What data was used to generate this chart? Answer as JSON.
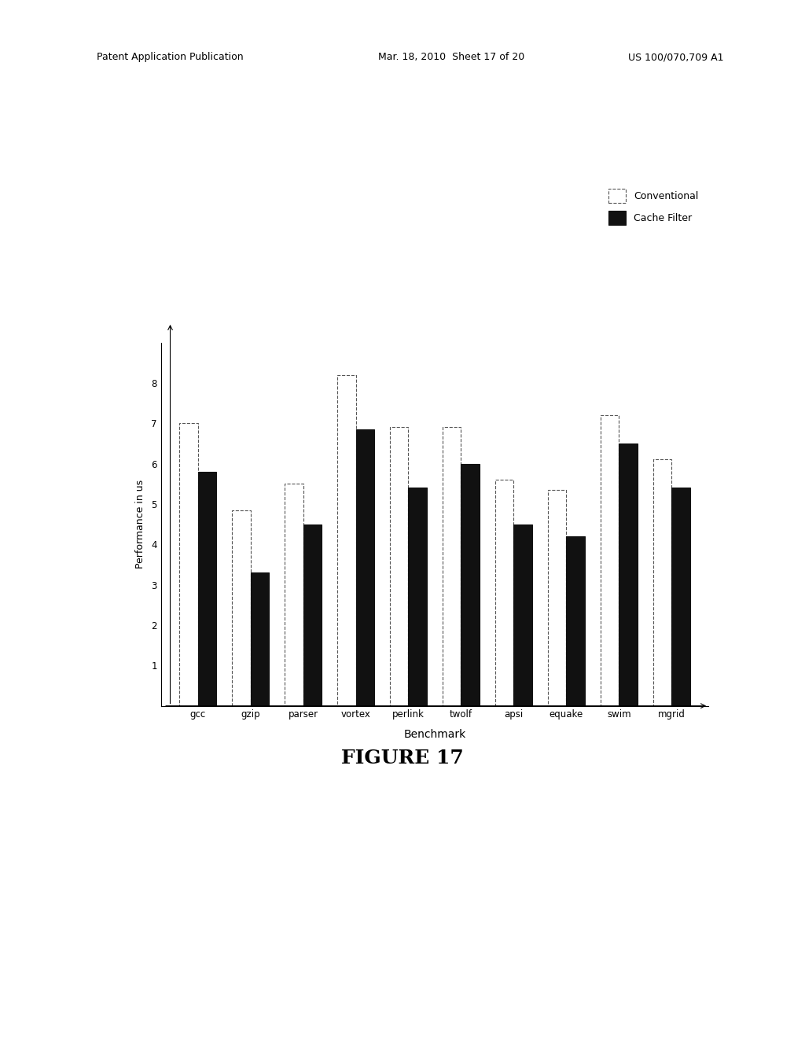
{
  "categories": [
    "gcc",
    "gzip",
    "parser",
    "vortex",
    "perlink",
    "twolf",
    "apsi",
    "equake",
    "swim",
    "mgrid"
  ],
  "conventional": [
    7.0,
    4.85,
    5.5,
    8.2,
    6.9,
    6.9,
    5.6,
    5.35,
    7.2,
    6.1
  ],
  "cache_filter": [
    5.8,
    3.3,
    4.5,
    6.85,
    5.4,
    6.0,
    4.5,
    4.2,
    6.5,
    5.4
  ],
  "ylabel": "Performance in us",
  "xlabel": "Benchmark",
  "title": "FIGURE 17",
  "legend_conventional": "Conventional",
  "legend_cache_filter": "Cache Filter",
  "ylim": [
    0,
    9
  ],
  "yticks": [
    1,
    2,
    3,
    4,
    5,
    6,
    7,
    8
  ],
  "bar_width": 0.35,
  "conventional_color": "white",
  "conventional_edgecolor": "#555555",
  "cache_filter_color": "#111111",
  "cache_filter_edgecolor": "#111111",
  "background_color": "#ffffff",
  "conventional_linestyle": "dashed",
  "figure_width": 7.5,
  "figure_height": 5.5
}
